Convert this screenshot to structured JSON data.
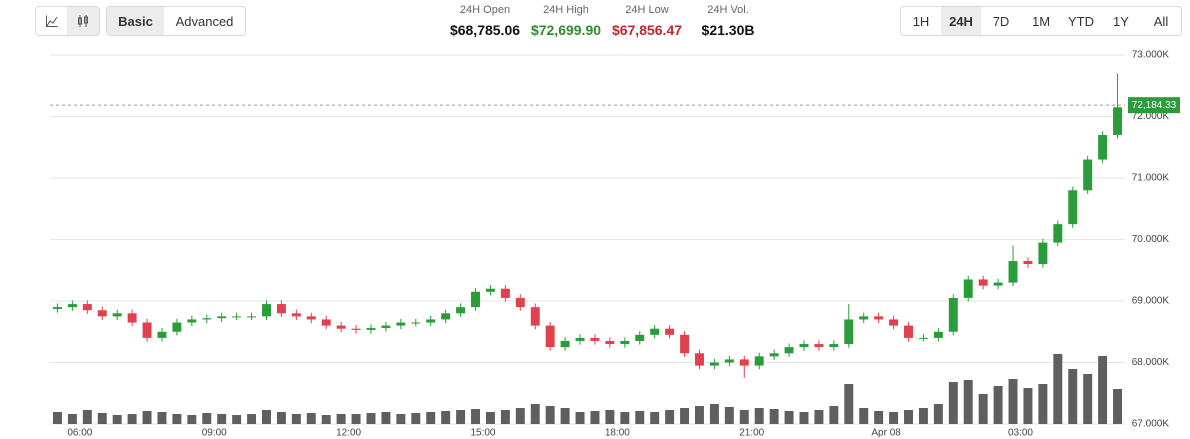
{
  "toolbar": {
    "modes": [
      "Basic",
      "Advanced"
    ],
    "stats": [
      {
        "label": "24H Open",
        "value": "$68,785.06"
      },
      {
        "label": "24H High",
        "value": "$72,699.90"
      },
      {
        "label": "24H Low",
        "value": "$67,856.47"
      },
      {
        "label": "24H Vol.",
        "value": "$21.30B"
      }
    ],
    "ranges": [
      "1H",
      "24H",
      "7D",
      "1M",
      "YTD",
      "1Y",
      "All"
    ]
  },
  "chart_data": {
    "type": "candlestick",
    "up_color": "#2a9d3a",
    "down_color": "#e0414e",
    "volume_color": "#5f5f5f",
    "grid": true,
    "ylim": [
      67000,
      73000
    ],
    "yticks": [
      {
        "value": 67000,
        "label": "67.000K"
      },
      {
        "value": 68000,
        "label": "68.000K"
      },
      {
        "value": 69000,
        "label": "69.000K"
      },
      {
        "value": 70000,
        "label": "70.000K"
      },
      {
        "value": 71000,
        "label": "71.000K"
      },
      {
        "value": 72000,
        "label": "72.000K"
      },
      {
        "value": 73000,
        "label": "73.000K"
      }
    ],
    "last_price": {
      "value": 72184.33,
      "label": "72,184.33"
    },
    "categories": [
      null,
      null,
      "06:00",
      null,
      null,
      null,
      null,
      null,
      null,
      null,
      null,
      "09:00",
      null,
      null,
      null,
      null,
      null,
      null,
      null,
      null,
      "12:00",
      null,
      null,
      null,
      null,
      null,
      null,
      null,
      null,
      "15:00",
      null,
      null,
      null,
      null,
      null,
      null,
      null,
      null,
      "18:00",
      null,
      null,
      null,
      null,
      null,
      null,
      null,
      null,
      "21:00",
      null,
      null,
      null,
      null,
      null,
      null,
      null,
      null,
      "Apr 08",
      null,
      null,
      null,
      null,
      null,
      null,
      null,
      null,
      "03:00",
      null,
      null,
      null,
      null,
      null,
      null
    ],
    "open": [
      68870,
      68900,
      68950,
      68850,
      68750,
      68800,
      68650,
      68400,
      68500,
      68650,
      68700,
      68720,
      68750,
      68750,
      68750,
      68950,
      68800,
      68750,
      68700,
      68600,
      68550,
      68530,
      68560,
      68600,
      68650,
      68650,
      68700,
      68800,
      68900,
      69150,
      69200,
      69050,
      68900,
      68600,
      68250,
      68350,
      68400,
      68350,
      68300,
      68350,
      68450,
      68550,
      68450,
      68150,
      67950,
      68000,
      68050,
      67950,
      68100,
      68150,
      68250,
      68300,
      68250,
      68300,
      68700,
      68750,
      68700,
      68600,
      68400,
      68400,
      68500,
      69050,
      69350,
      69250,
      69300,
      69650,
      69600,
      69950,
      70250,
      70800,
      71300,
      71700
    ],
    "high": [
      68960,
      69010,
      69010,
      68910,
      68860,
      68860,
      68710,
      68560,
      68710,
      68760,
      68780,
      68810,
      68810,
      68810,
      69010,
      69010,
      68860,
      68810,
      68760,
      68660,
      68610,
      68620,
      68660,
      68710,
      68710,
      68760,
      68860,
      68960,
      69210,
      69260,
      69260,
      69110,
      68960,
      68660,
      68410,
      68460,
      68460,
      68410,
      68410,
      68510,
      68610,
      68610,
      68510,
      68210,
      68060,
      68110,
      68110,
      68160,
      68210,
      68310,
      68360,
      68360,
      68360,
      68950,
      68810,
      68810,
      68760,
      68660,
      68460,
      68560,
      69110,
      69410,
      69410,
      69360,
      69900,
      69710,
      70010,
      70310,
      70860,
      71360,
      71760,
      72700
    ],
    "low": [
      68810,
      68840,
      68790,
      68690,
      68690,
      68590,
      68340,
      68340,
      68440,
      68590,
      68640,
      68660,
      68690,
      68690,
      68690,
      68740,
      68690,
      68640,
      68540,
      68490,
      68470,
      68470,
      68500,
      68540,
      68590,
      68590,
      68640,
      68740,
      68840,
      69090,
      68990,
      68840,
      68540,
      68190,
      68190,
      68290,
      68290,
      68240,
      68240,
      68290,
      68390,
      68390,
      68090,
      67890,
      67890,
      67940,
      67750,
      67890,
      68040,
      68090,
      68190,
      68190,
      68190,
      68240,
      68640,
      68640,
      68540,
      68340,
      68340,
      68340,
      68440,
      68990,
      69190,
      69190,
      69240,
      69540,
      69540,
      69890,
      70190,
      70740,
      71240,
      71640
    ],
    "close": [
      68900,
      68950,
      68850,
      68750,
      68800,
      68650,
      68400,
      68500,
      68650,
      68700,
      68720,
      68750,
      68750,
      68750,
      68950,
      68800,
      68750,
      68700,
      68600,
      68550,
      68530,
      68560,
      68600,
      68650,
      68650,
      68700,
      68800,
      68900,
      69150,
      69200,
      69050,
      68900,
      68600,
      68250,
      68350,
      68400,
      68350,
      68300,
      68350,
      68450,
      68550,
      68450,
      68150,
      67950,
      68000,
      68050,
      67950,
      68100,
      68150,
      68250,
      68300,
      68250,
      68300,
      68700,
      68750,
      68700,
      68600,
      68400,
      68400,
      68500,
      69050,
      69350,
      69250,
      69300,
      69650,
      69600,
      69950,
      70250,
      70800,
      71300,
      71700,
      72150
    ],
    "volume": [
      12,
      10,
      14,
      11,
      9,
      10,
      13,
      12,
      10,
      9,
      11,
      10,
      9,
      10,
      14,
      12,
      10,
      11,
      9,
      10,
      10,
      11,
      12,
      10,
      11,
      12,
      13,
      14,
      15,
      12,
      14,
      16,
      20,
      18,
      16,
      12,
      13,
      14,
      12,
      13,
      12,
      14,
      16,
      18,
      20,
      17,
      14,
      16,
      15,
      13,
      12,
      14,
      18,
      40,
      16,
      13,
      12,
      14,
      16,
      20,
      42,
      44,
      30,
      38,
      45,
      36,
      40,
      70,
      55,
      50,
      68,
      35
    ]
  }
}
